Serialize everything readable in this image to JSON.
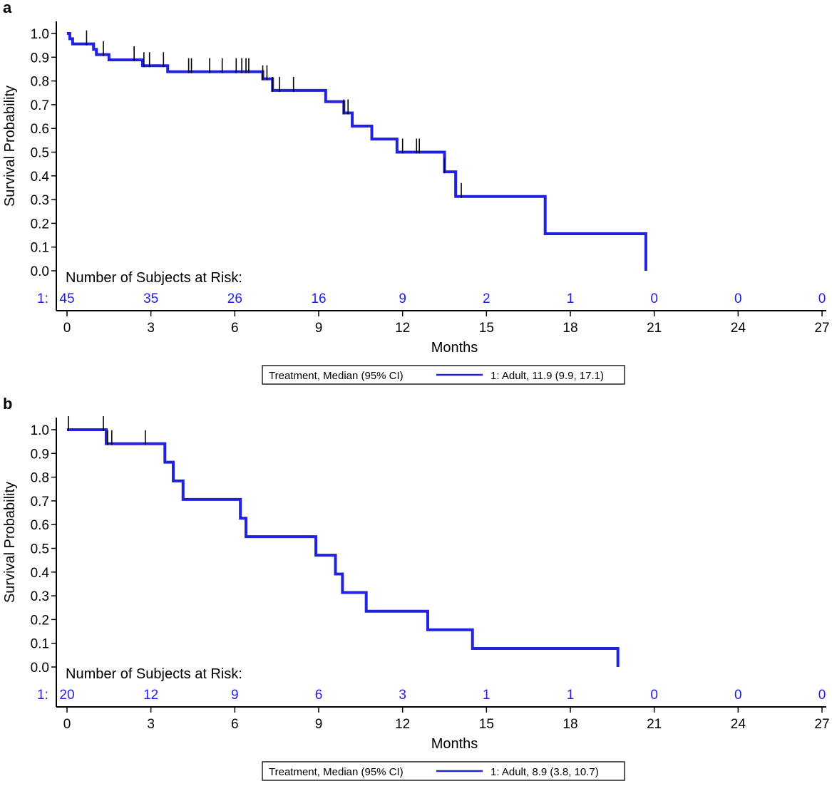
{
  "chart_data": [
    {
      "type": "line",
      "panel_label": "a",
      "xlabel": "Months",
      "ylabel": "Survival Probability",
      "xlim": [
        0,
        27
      ],
      "ylim": [
        0,
        1
      ],
      "x_ticks": [
        "0",
        "3",
        "6",
        "9",
        "12",
        "15",
        "18",
        "21",
        "24",
        "27"
      ],
      "y_ticks": [
        "0.0",
        "0.1",
        "0.2",
        "0.3",
        "0.4",
        "0.5",
        "0.6",
        "0.7",
        "0.8",
        "0.9",
        "1.0"
      ],
      "risk_table": {
        "title": "Number of Subjects at Risk:",
        "row_label": "1:",
        "times": [
          0,
          3,
          6,
          9,
          12,
          15,
          18,
          21,
          24,
          27
        ],
        "counts": [
          "45",
          "35",
          "26",
          "16",
          "9",
          "2",
          "1",
          "0",
          "0",
          "0"
        ]
      },
      "legend": {
        "header": "Treatment, Median (95% CI)",
        "entry": "1: Adult, 11.9 (9.9, 17.1)"
      },
      "series": [
        {
          "name": "1: Adult",
          "color": "#2222dd",
          "steps": [
            [
              0,
              1.0
            ],
            [
              0.1,
              0.978
            ],
            [
              0.2,
              0.956
            ],
            [
              0.95,
              0.933
            ],
            [
              1.05,
              0.911
            ],
            [
              1.5,
              0.889
            ],
            [
              2.7,
              0.864
            ],
            [
              3.6,
              0.839
            ],
            [
              7.0,
              0.809
            ],
            [
              7.35,
              0.76
            ],
            [
              9.25,
              0.713
            ],
            [
              9.9,
              0.665
            ],
            [
              10.2,
              0.61
            ],
            [
              10.9,
              0.555
            ],
            [
              11.8,
              0.5
            ],
            [
              13.5,
              0.417
            ],
            [
              13.9,
              0.313
            ],
            [
              17.1,
              0.156
            ],
            [
              20.7,
              0.0
            ]
          ],
          "censor_times": [
            0.7,
            1.3,
            2.4,
            2.75,
            2.95,
            3.45,
            4.35,
            4.45,
            5.1,
            5.55,
            6.05,
            6.25,
            6.4,
            6.5,
            7.0,
            7.15,
            7.35,
            7.6,
            8.1,
            9.9,
            10.05,
            12.0,
            12.5,
            12.6,
            13.5,
            14.1
          ]
        }
      ]
    },
    {
      "type": "line",
      "panel_label": "b",
      "xlabel": "Months",
      "ylabel": "Survival Probability",
      "xlim": [
        0,
        27
      ],
      "ylim": [
        0,
        1
      ],
      "x_ticks": [
        "0",
        "3",
        "6",
        "9",
        "12",
        "15",
        "18",
        "21",
        "24",
        "27"
      ],
      "y_ticks": [
        "0.0",
        "0.1",
        "0.2",
        "0.3",
        "0.4",
        "0.5",
        "0.6",
        "0.7",
        "0.8",
        "0.9",
        "1.0"
      ],
      "risk_table": {
        "title": "Number of Subjects at Risk:",
        "row_label": "1:",
        "times": [
          0,
          3,
          6,
          9,
          12,
          15,
          18,
          21,
          24,
          27
        ],
        "counts": [
          "20",
          "12",
          "9",
          "6",
          "3",
          "1",
          "1",
          "0",
          "0",
          "0"
        ]
      },
      "legend": {
        "header": "Treatment, Median (95% CI)",
        "entry": "1: Adult, 8.9 (3.8, 10.7)"
      },
      "series": [
        {
          "name": "1: Adult",
          "color": "#2222dd",
          "steps": [
            [
              0,
              1.0
            ],
            [
              1.4,
              0.941
            ],
            [
              3.5,
              0.863
            ],
            [
              3.8,
              0.784
            ],
            [
              4.15,
              0.706
            ],
            [
              6.2,
              0.627
            ],
            [
              6.4,
              0.549
            ],
            [
              8.9,
              0.471
            ],
            [
              9.6,
              0.392
            ],
            [
              9.85,
              0.314
            ],
            [
              10.7,
              0.235
            ],
            [
              12.9,
              0.157
            ],
            [
              14.5,
              0.078
            ],
            [
              19.7,
              0.0
            ]
          ],
          "censor_times": [
            0.05,
            1.3,
            1.45,
            1.6,
            2.8
          ]
        }
      ]
    }
  ]
}
